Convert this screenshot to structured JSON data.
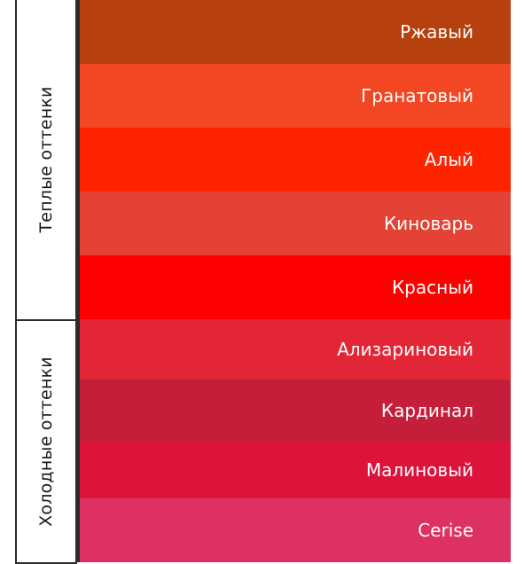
{
  "groups": [
    {
      "label": "Теплые оттенки"
    },
    {
      "label": "Холодные оттенки"
    }
  ],
  "swatches": [
    {
      "label": "Ржавый",
      "color": "#B7410E"
    },
    {
      "label": "Гранатовый",
      "color": "#F34723"
    },
    {
      "label": "Алый",
      "color": "#FF2400"
    },
    {
      "label": "Киноварь",
      "color": "#E34234"
    },
    {
      "label": "Красный",
      "color": "#FF0000"
    },
    {
      "label": "Ализариновый",
      "color": "#E32636"
    },
    {
      "label": "Кардинал",
      "color": "#C41E3A"
    },
    {
      "label": "Малиновый",
      "color": "#DC143C"
    },
    {
      "label": "Cerise",
      "color": "#DE3163"
    }
  ]
}
